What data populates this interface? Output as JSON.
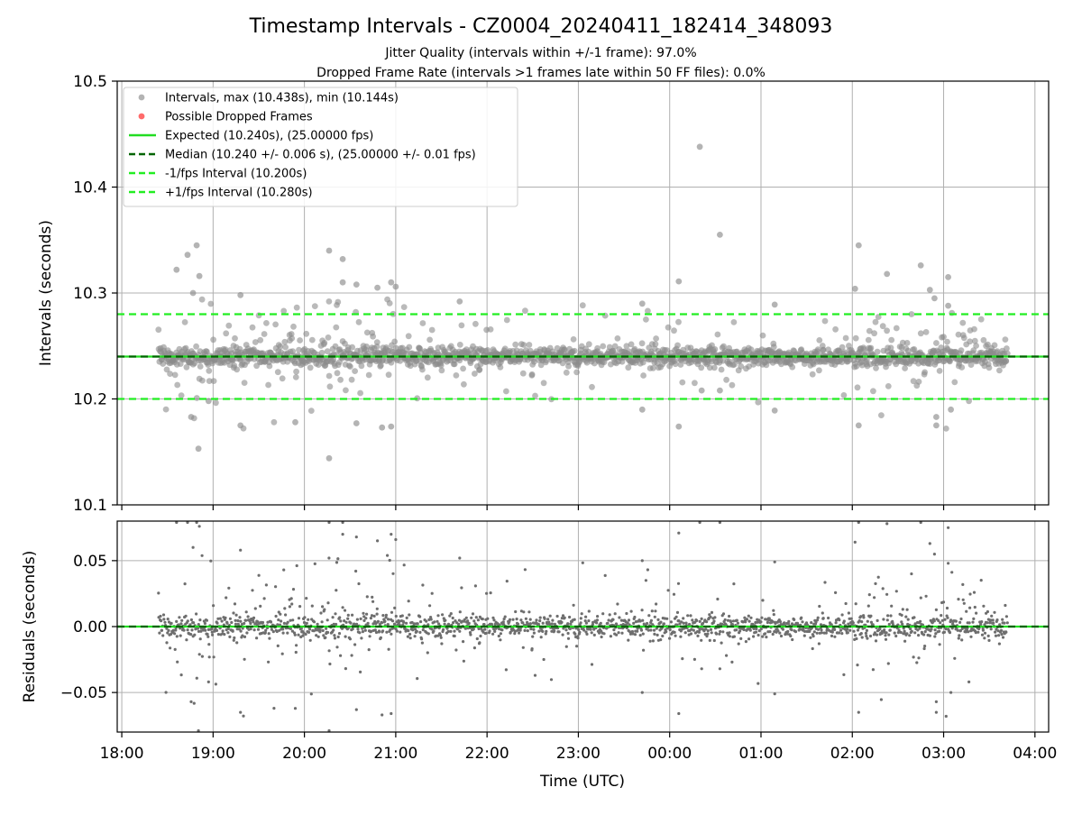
{
  "header": {
    "title": "Timestamp Intervals - CZ0004_20240411_182414_348093",
    "subtitle_1": "Jitter Quality (intervals within +/-1 frame): 97.0%",
    "subtitle_2": "Dropped Frame Rate (intervals >1 frames late within 50 FF files): 0.0%"
  },
  "colors": {
    "points": "#808080",
    "dropped": "#ff6b6b",
    "expected": "#22dd22",
    "median": "#006400",
    "fps_interval": "#22ee22",
    "grid": "#b0b0b0"
  },
  "chart_data": [
    {
      "type": "scatter",
      "xlabel": "",
      "ylabel": "Intervals (seconds)",
      "x_range_hours": [
        17.95,
        28.15
      ],
      "ylim": [
        10.1,
        10.5
      ],
      "y_ticks": [
        "10.1",
        "10.2",
        "10.3",
        "10.4",
        "10.5"
      ],
      "grid": true,
      "legend_position": "top-left",
      "legend": [
        {
          "kind": "marker",
          "color": "#a0a0a0",
          "label": "Intervals, max (10.438s), min (10.144s)"
        },
        {
          "kind": "marker",
          "color": "#ff6b6b",
          "label": "Possible Dropped Frames"
        },
        {
          "kind": "solid",
          "color": "#22dd22",
          "label": "Expected (10.240s), (25.00000 fps)"
        },
        {
          "kind": "dashed",
          "color": "#006400",
          "label": "Median (10.240 +/- 0.006 s), (25.00000 +/- 0.01 fps)"
        },
        {
          "kind": "dashed",
          "color": "#22ee22",
          "label": "-1/fps Interval (10.200s)"
        },
        {
          "kind": "dashed",
          "color": "#22ee22",
          "label": "+1/fps Interval (10.280s)"
        }
      ],
      "reference_lines": {
        "expected": 10.24,
        "median": 10.24,
        "minus_fps": 10.2,
        "plus_fps": 10.28
      },
      "data_span_hours": [
        18.4,
        27.7
      ],
      "max_interval": 10.438,
      "min_interval": 10.144,
      "outliers": [
        {
          "x": 18.6,
          "y": 10.322
        },
        {
          "x": 18.72,
          "y": 10.336
        },
        {
          "x": 18.82,
          "y": 10.345
        },
        {
          "x": 18.85,
          "y": 10.316
        },
        {
          "x": 18.78,
          "y": 10.3
        },
        {
          "x": 18.84,
          "y": 10.153
        },
        {
          "x": 18.76,
          "y": 10.183
        },
        {
          "x": 18.95,
          "y": 10.198
        },
        {
          "x": 19.3,
          "y": 10.298
        },
        {
          "x": 19.3,
          "y": 10.175
        },
        {
          "x": 19.9,
          "y": 10.178
        },
        {
          "x": 20.27,
          "y": 10.34
        },
        {
          "x": 20.42,
          "y": 10.332
        },
        {
          "x": 20.27,
          "y": 10.144
        },
        {
          "x": 20.42,
          "y": 10.31
        },
        {
          "x": 20.57,
          "y": 10.308
        },
        {
          "x": 20.57,
          "y": 10.177
        },
        {
          "x": 20.8,
          "y": 10.305
        },
        {
          "x": 20.95,
          "y": 10.31
        },
        {
          "x": 21.0,
          "y": 10.306
        },
        {
          "x": 20.85,
          "y": 10.173
        },
        {
          "x": 20.95,
          "y": 10.174
        },
        {
          "x": 21.7,
          "y": 10.292
        },
        {
          "x": 23.7,
          "y": 10.29
        },
        {
          "x": 23.7,
          "y": 10.19
        },
        {
          "x": 24.1,
          "y": 10.311
        },
        {
          "x": 24.1,
          "y": 10.174
        },
        {
          "x": 24.33,
          "y": 10.438
        },
        {
          "x": 24.55,
          "y": 10.355
        },
        {
          "x": 24.35,
          "y": 10.208
        },
        {
          "x": 24.55,
          "y": 10.208
        },
        {
          "x": 25.15,
          "y": 10.289
        },
        {
          "x": 25.15,
          "y": 10.189
        },
        {
          "x": 26.07,
          "y": 10.345
        },
        {
          "x": 26.03,
          "y": 10.304
        },
        {
          "x": 26.07,
          "y": 10.175
        },
        {
          "x": 26.38,
          "y": 10.318
        },
        {
          "x": 26.75,
          "y": 10.326
        },
        {
          "x": 26.85,
          "y": 10.303
        },
        {
          "x": 26.9,
          "y": 10.295
        },
        {
          "x": 26.92,
          "y": 10.175
        },
        {
          "x": 26.92,
          "y": 10.183
        },
        {
          "x": 27.05,
          "y": 10.315
        },
        {
          "x": 27.05,
          "y": 10.288
        },
        {
          "x": 27.08,
          "y": 10.19
        }
      ]
    },
    {
      "type": "scatter",
      "xlabel": "Time (UTC)",
      "ylabel": "Residuals (seconds)",
      "x_range_hours": [
        17.95,
        28.15
      ],
      "ylim": [
        -0.08,
        0.08
      ],
      "y_ticks": [
        "−0.05",
        "0.00",
        "0.05"
      ],
      "x_ticks": [
        "18:00",
        "19:00",
        "20:00",
        "21:00",
        "22:00",
        "23:00",
        "00:00",
        "01:00",
        "02:00",
        "03:00",
        "04:00"
      ],
      "grid": true,
      "reference_lines": {
        "expected": 0.0,
        "median": 0.0
      }
    }
  ]
}
